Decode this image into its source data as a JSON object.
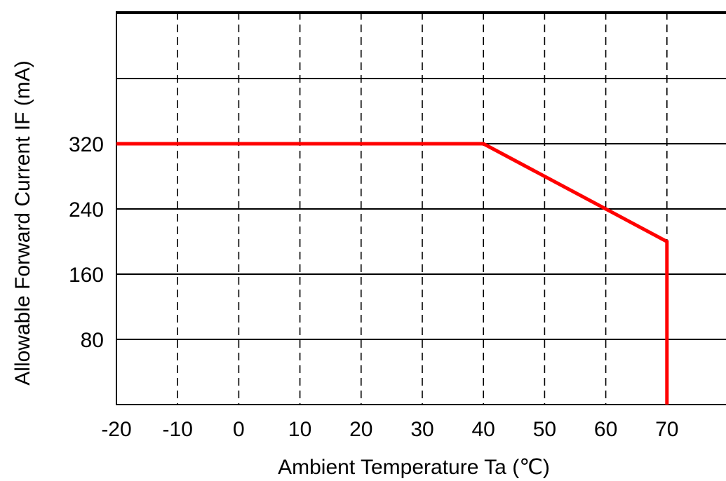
{
  "chart_data": {
    "type": "line",
    "title": "",
    "xlabel": "Ambient Temperature Ta (℃)",
    "ylabel": "Allowable Forward Current IF (mA)",
    "xlim": [
      -20,
      80
    ],
    "ylim": [
      0,
      400
    ],
    "x_ticks": [
      -20,
      -10,
      0,
      10,
      20,
      30,
      40,
      50,
      60,
      70
    ],
    "x_tick_labels": [
      "-20",
      "-10",
      "0",
      "10",
      "20",
      "30",
      "40",
      "50",
      "60",
      "70"
    ],
    "y_ticks": [
      80,
      160,
      240,
      320
    ],
    "y_tick_labels": [
      "80",
      "160",
      "240",
      "320"
    ],
    "horizontal_gridlines": [
      80,
      160,
      240,
      320,
      400,
      480
    ],
    "vertical_gridlines": [
      -10,
      0,
      10,
      20,
      30,
      40,
      50,
      60,
      70
    ],
    "grid": true,
    "series": [
      {
        "color": "#ff0000",
        "points": [
          {
            "x": -20,
            "y": 320
          },
          {
            "x": 40,
            "y": 320
          },
          {
            "x": 70,
            "y": 200
          },
          {
            "x": 70,
            "y": 0
          }
        ]
      }
    ]
  }
}
